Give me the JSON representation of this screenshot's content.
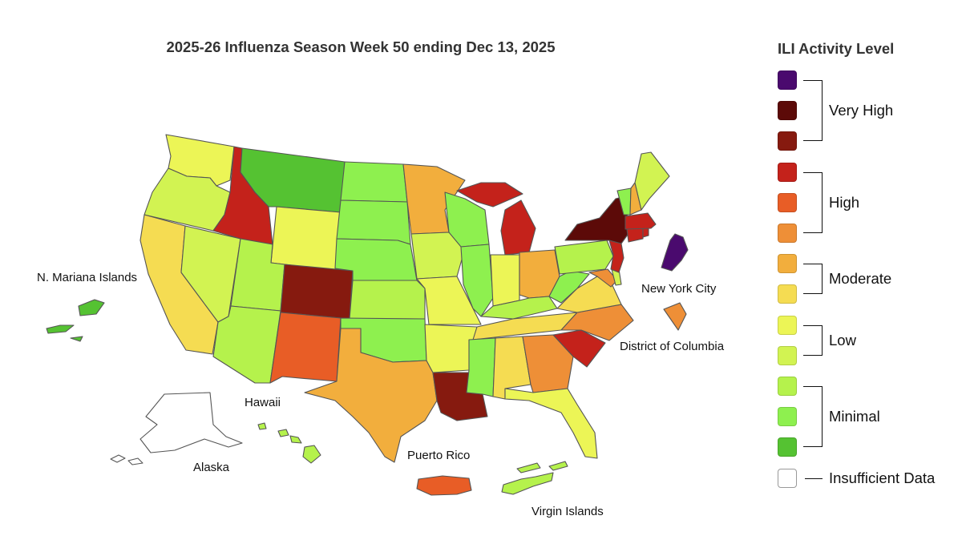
{
  "title": "2025-26 Influenza Season Week 50 ending Dec 13, 2025",
  "legend": {
    "title": "ILI Activity Level",
    "levels": [
      {
        "level": 13,
        "color": "#4a0a6e"
      },
      {
        "level": 12,
        "color": "#5c0a08"
      },
      {
        "level": 11,
        "color": "#861a0f"
      },
      {
        "level": 10,
        "color": "#c4221b"
      },
      {
        "level": 9,
        "color": "#e85d26"
      },
      {
        "level": 8,
        "color": "#ee8f37"
      },
      {
        "level": 7,
        "color": "#f2ae3d"
      },
      {
        "level": 6,
        "color": "#f5dc52"
      },
      {
        "level": 5,
        "color": "#ecf556"
      },
      {
        "level": 4,
        "color": "#d2f352"
      },
      {
        "level": 3,
        "color": "#b5f24c"
      },
      {
        "level": 2,
        "color": "#8ef04f"
      },
      {
        "level": 1,
        "color": "#55c232"
      },
      {
        "level": 0,
        "color": "#ffffff"
      }
    ],
    "groups": [
      {
        "label": "Very High",
        "from": 13,
        "to": 11
      },
      {
        "label": "High",
        "from": 10,
        "to": 8
      },
      {
        "label": "Moderate",
        "from": 7,
        "to": 6
      },
      {
        "label": "Low",
        "from": 5,
        "to": 4
      },
      {
        "label": "Minimal",
        "from": 3,
        "to": 1
      },
      {
        "label": "Insufficient Data",
        "from": 0,
        "to": 0
      }
    ]
  },
  "labels": {
    "n_mariana": "N. Mariana Islands",
    "nyc": "New York City",
    "dc": "District of Columbia",
    "hawaii": "Hawaii",
    "alaska": "Alaska",
    "puerto_rico": "Puerto Rico",
    "virgin_islands": "Virgin Islands"
  },
  "regions": [
    {
      "name": "Washington",
      "level": 5
    },
    {
      "name": "Oregon",
      "level": 4
    },
    {
      "name": "California",
      "level": 6
    },
    {
      "name": "Nevada",
      "level": 4
    },
    {
      "name": "Idaho",
      "level": 10
    },
    {
      "name": "Montana",
      "level": 1
    },
    {
      "name": "Wyoming",
      "level": 5
    },
    {
      "name": "Utah",
      "level": 3
    },
    {
      "name": "Arizona",
      "level": 3
    },
    {
      "name": "Colorado",
      "level": 11
    },
    {
      "name": "New Mexico",
      "level": 9
    },
    {
      "name": "North Dakota",
      "level": 2
    },
    {
      "name": "South Dakota",
      "level": 2
    },
    {
      "name": "Nebraska",
      "level": 2
    },
    {
      "name": "Kansas",
      "level": 3
    },
    {
      "name": "Oklahoma",
      "level": 2
    },
    {
      "name": "Texas",
      "level": 7
    },
    {
      "name": "Minnesota",
      "level": 7
    },
    {
      "name": "Iowa",
      "level": 4
    },
    {
      "name": "Missouri",
      "level": 5
    },
    {
      "name": "Arkansas",
      "level": 5
    },
    {
      "name": "Louisiana",
      "level": 11
    },
    {
      "name": "Wisconsin",
      "level": 2
    },
    {
      "name": "Illinois",
      "level": 2
    },
    {
      "name": "Michigan",
      "level": 10
    },
    {
      "name": "Indiana",
      "level": 5
    },
    {
      "name": "Ohio",
      "level": 7
    },
    {
      "name": "Kentucky",
      "level": 3
    },
    {
      "name": "Tennessee",
      "level": 6
    },
    {
      "name": "Mississippi",
      "level": 2
    },
    {
      "name": "Alabama",
      "level": 6
    },
    {
      "name": "Georgia",
      "level": 8
    },
    {
      "name": "Florida",
      "level": 5
    },
    {
      "name": "South Carolina",
      "level": 10
    },
    {
      "name": "North Carolina",
      "level": 8
    },
    {
      "name": "Virginia",
      "level": 6
    },
    {
      "name": "West Virginia",
      "level": 2
    },
    {
      "name": "Maryland",
      "level": 8
    },
    {
      "name": "Delaware",
      "level": 4
    },
    {
      "name": "Pennsylvania",
      "level": 3
    },
    {
      "name": "New Jersey",
      "level": 10
    },
    {
      "name": "New York",
      "level": 12
    },
    {
      "name": "Connecticut",
      "level": 10
    },
    {
      "name": "Rhode Island",
      "level": 10
    },
    {
      "name": "Massachusetts",
      "level": 10
    },
    {
      "name": "Vermont",
      "level": 2
    },
    {
      "name": "New Hampshire",
      "level": 7
    },
    {
      "name": "Maine",
      "level": 4
    },
    {
      "name": "New York City",
      "level": 13
    },
    {
      "name": "District of Columbia",
      "level": 8
    },
    {
      "name": "Alaska",
      "level": 0
    },
    {
      "name": "Hawaii",
      "level": 3
    },
    {
      "name": "Puerto Rico",
      "level": 9
    },
    {
      "name": "Virgin Islands",
      "level": 3
    },
    {
      "name": "N. Mariana Islands",
      "level": 1
    }
  ]
}
